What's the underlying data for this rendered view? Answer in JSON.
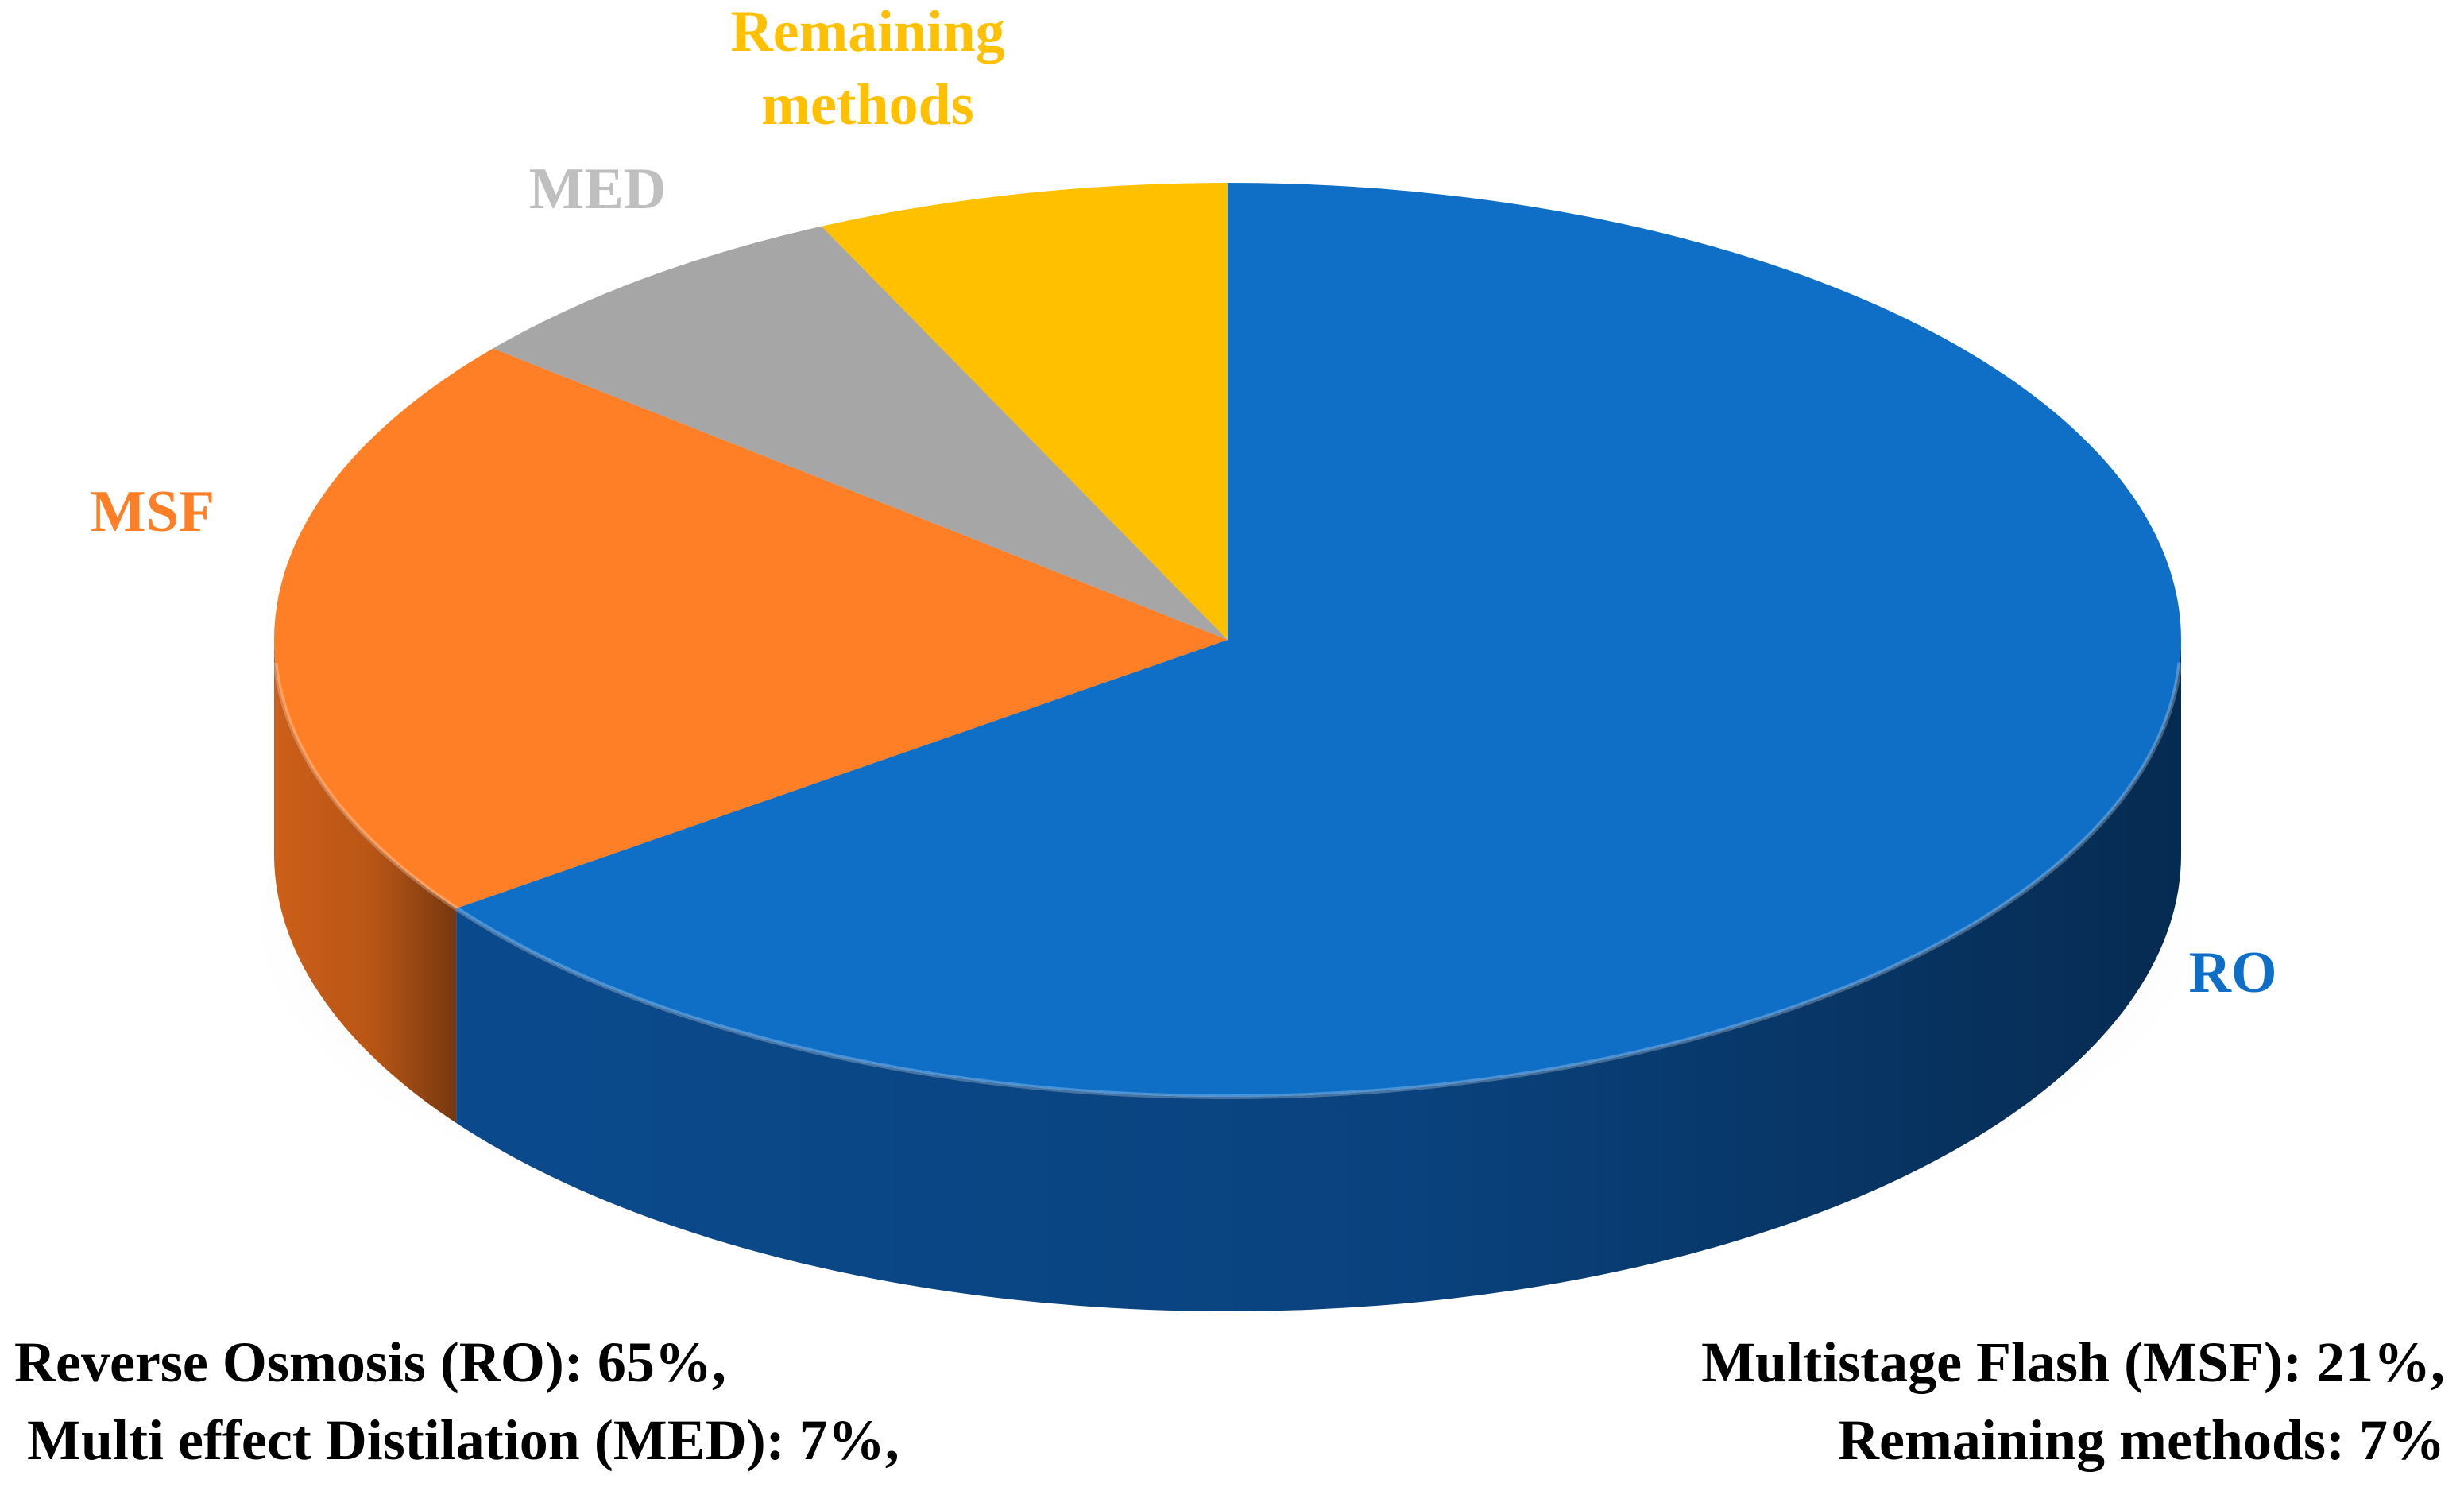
{
  "chart_data": {
    "type": "pie",
    "style": "3d",
    "title": "",
    "legend": "none",
    "slices": [
      {
        "label": "RO",
        "value": 65,
        "color": "#0F6FC6",
        "side_color": "#0B4E94",
        "label_color": "#0F6FC6"
      },
      {
        "label": "MSF",
        "value": 21,
        "color": "#FF7F27",
        "side_color": "#D8641A",
        "label_color": "#FF7F27"
      },
      {
        "label": "MED",
        "value": 7,
        "color": "#A6A6A6",
        "side_color": "#8A8A8A",
        "label_color": "#BFBFBF"
      },
      {
        "label": "Remaining methods",
        "value": 7,
        "color": "#FFC000",
        "side_color": "#D9A300",
        "label_color": "#FFC000",
        "label_lines": [
          "Remaining",
          "methods"
        ]
      }
    ]
  },
  "footer": {
    "left_line_1": "Reverse Osmosis (RO): 65%,",
    "left_line_2": "Multi effect Distilation (MED): 7%,",
    "right_line_1": "Multistage Flash (MSF): 21%,",
    "right_line_2": "Remaining methods: 7%"
  }
}
